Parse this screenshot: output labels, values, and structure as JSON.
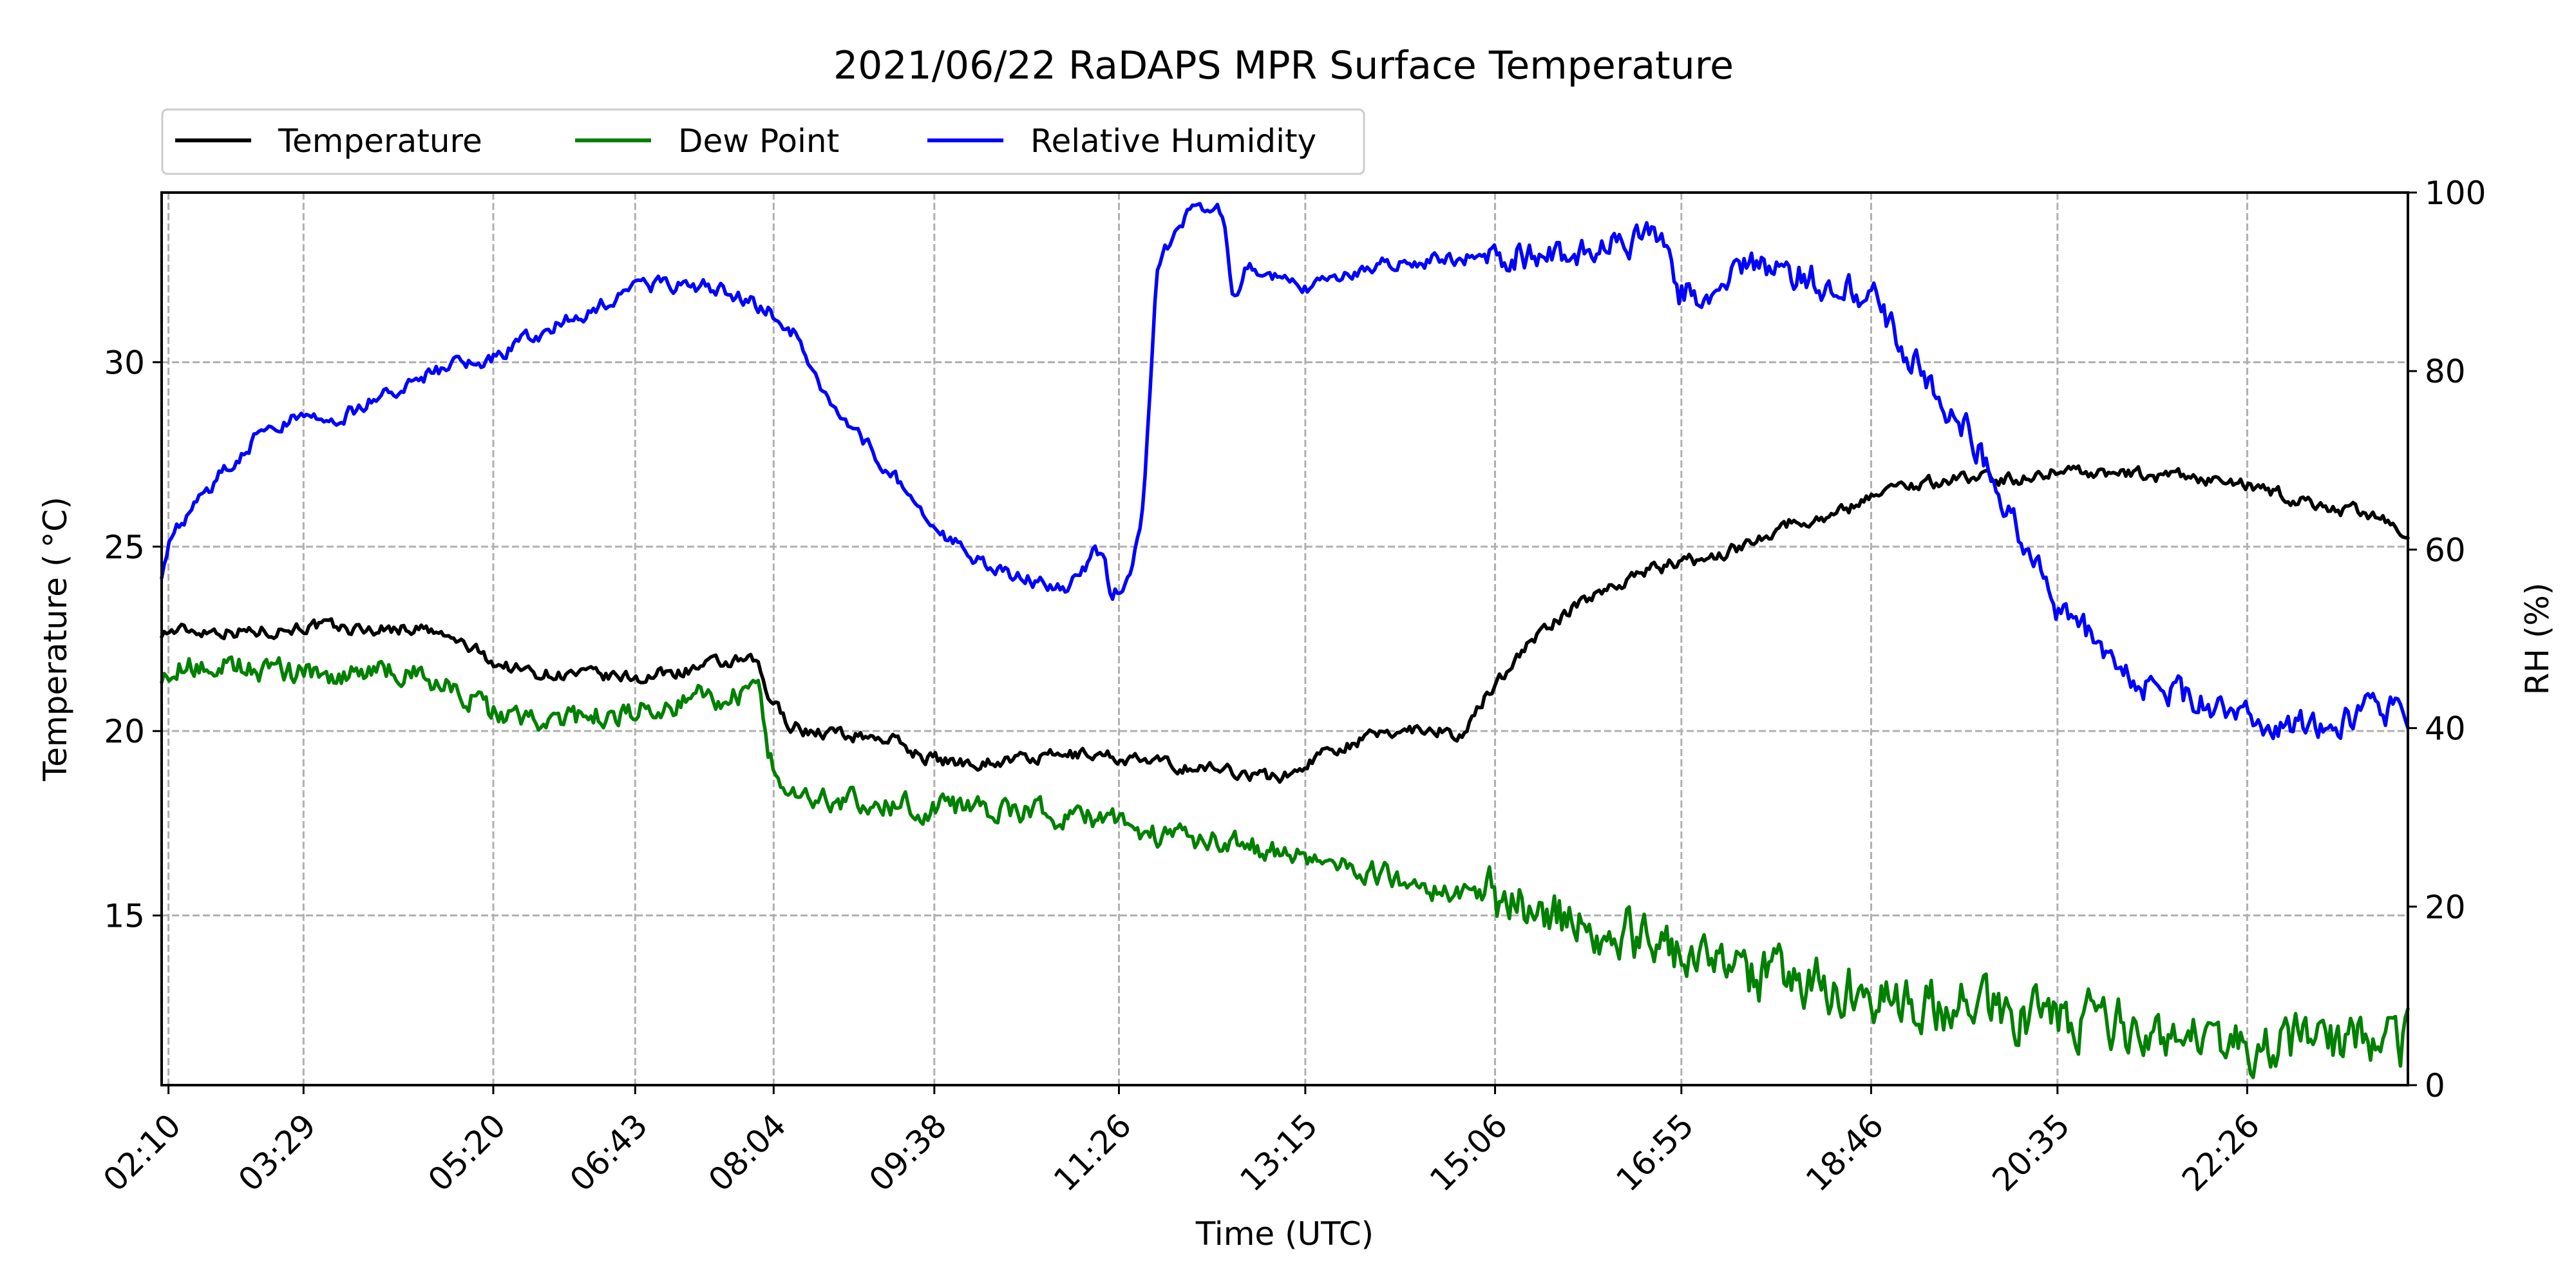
{
  "chart_data": {
    "type": "line",
    "title": "2021/06/22 RaDAPS MPR Surface Temperature",
    "xlabel": "Time (UTC)",
    "ylabel_left": "Temperature ($^\\circ$C)",
    "ylabel_right": "RH (%)",
    "x_unit": "time of day (hours, UTC)",
    "xlim": [
      2.1,
      24.0
    ],
    "ylim_left": [
      10.4,
      34.6
    ],
    "ylim_right": [
      0,
      100
    ],
    "xticks": [
      {
        "t": 2.1667,
        "label": "02:10"
      },
      {
        "t": 3.4833,
        "label": "03:29"
      },
      {
        "t": 5.3333,
        "label": "05:20"
      },
      {
        "t": 6.7167,
        "label": "06:43"
      },
      {
        "t": 8.0667,
        "label": "08:04"
      },
      {
        "t": 9.6333,
        "label": "09:38"
      },
      {
        "t": 11.4333,
        "label": "11:26"
      },
      {
        "t": 13.25,
        "label": "13:15"
      },
      {
        "t": 15.1,
        "label": "15:06"
      },
      {
        "t": 16.9167,
        "label": "16:55"
      },
      {
        "t": 18.7667,
        "label": "18:46"
      },
      {
        "t": 20.5833,
        "label": "20:35"
      },
      {
        "t": 22.4333,
        "label": "22:26"
      }
    ],
    "yticks_left": [
      15,
      20,
      25,
      30
    ],
    "yticks_right": [
      0,
      20,
      40,
      60,
      80,
      100
    ],
    "grid": true,
    "legend_position": "top-left, above plot",
    "series": [
      {
        "name": "Temperature",
        "axis": "left",
        "color": "#000000",
        "noise": 0.15,
        "points": [
          [
            2.1,
            22.7
          ],
          [
            2.6,
            22.75
          ],
          [
            3.0,
            22.7
          ],
          [
            3.5,
            22.85
          ],
          [
            4.0,
            22.75
          ],
          [
            4.6,
            22.8
          ],
          [
            4.8,
            22.6
          ],
          [
            5.0,
            22.4
          ],
          [
            5.2,
            22.1
          ],
          [
            5.4,
            21.8
          ],
          [
            5.7,
            21.6
          ],
          [
            6.0,
            21.55
          ],
          [
            6.5,
            21.45
          ],
          [
            6.8,
            21.45
          ],
          [
            7.0,
            21.55
          ],
          [
            7.4,
            21.75
          ],
          [
            7.7,
            21.85
          ],
          [
            7.9,
            21.85
          ],
          [
            8.0,
            21.0
          ],
          [
            8.2,
            20.25
          ],
          [
            8.4,
            20.0
          ],
          [
            8.8,
            19.9
          ],
          [
            9.2,
            19.8
          ],
          [
            9.5,
            19.35
          ],
          [
            9.8,
            19.15
          ],
          [
            10.3,
            19.2
          ],
          [
            10.8,
            19.3
          ],
          [
            11.2,
            19.4
          ],
          [
            11.6,
            19.2
          ],
          [
            12.0,
            19.05
          ],
          [
            12.5,
            18.95
          ],
          [
            12.9,
            18.75
          ],
          [
            13.1,
            18.8
          ],
          [
            13.3,
            19.2
          ],
          [
            13.5,
            19.55
          ],
          [
            13.8,
            19.75
          ],
          [
            14.2,
            20.05
          ],
          [
            14.5,
            20.1
          ],
          [
            14.8,
            19.85
          ],
          [
            15.0,
            20.9
          ],
          [
            15.3,
            22.0
          ],
          [
            15.6,
            22.8
          ],
          [
            16.0,
            23.6
          ],
          [
            16.5,
            24.3
          ],
          [
            16.8,
            24.5
          ],
          [
            17.2,
            24.7
          ],
          [
            17.5,
            25.0
          ],
          [
            17.9,
            25.6
          ],
          [
            18.3,
            25.8
          ],
          [
            18.6,
            26.1
          ],
          [
            18.8,
            26.5
          ],
          [
            19.2,
            26.7
          ],
          [
            19.5,
            26.8
          ],
          [
            19.8,
            26.9
          ],
          [
            20.2,
            26.8
          ],
          [
            20.6,
            27.1
          ],
          [
            21.0,
            27.0
          ],
          [
            21.5,
            26.9
          ],
          [
            22.0,
            26.85
          ],
          [
            22.5,
            26.6
          ],
          [
            22.9,
            26.3
          ],
          [
            23.3,
            26.0
          ],
          [
            23.7,
            25.9
          ],
          [
            23.9,
            25.3
          ],
          [
            24.0,
            25.1
          ]
        ]
      },
      {
        "name": "Dew Point",
        "axis": "left",
        "color": "#008000",
        "noise": 0.28,
        "points": [
          [
            2.1,
            21.6
          ],
          [
            2.4,
            21.8
          ],
          [
            2.8,
            21.75
          ],
          [
            3.2,
            21.6
          ],
          [
            3.8,
            21.55
          ],
          [
            4.6,
            21.6
          ],
          [
            4.8,
            21.3
          ],
          [
            5.1,
            21.0
          ],
          [
            5.3,
            20.5
          ],
          [
            5.5,
            20.25
          ],
          [
            6.0,
            20.3
          ],
          [
            6.5,
            20.45
          ],
          [
            7.0,
            20.7
          ],
          [
            7.4,
            20.9
          ],
          [
            7.8,
            20.95
          ],
          [
            7.93,
            20.85
          ],
          [
            8.0,
            19.5
          ],
          [
            8.1,
            18.6
          ],
          [
            8.3,
            18.3
          ],
          [
            8.8,
            18.1
          ],
          [
            9.3,
            17.95
          ],
          [
            9.8,
            17.9
          ],
          [
            10.4,
            17.8
          ],
          [
            11.0,
            17.7
          ],
          [
            11.4,
            17.65
          ],
          [
            11.6,
            17.3
          ],
          [
            12.0,
            17.1
          ],
          [
            12.6,
            16.95
          ],
          [
            13.1,
            16.55
          ],
          [
            13.6,
            16.45
          ],
          [
            14.0,
            16.1
          ],
          [
            14.6,
            15.6
          ],
          [
            15.2,
            15.3
          ],
          [
            15.8,
            15.0
          ],
          [
            16.3,
            14.6
          ],
          [
            16.8,
            13.9
          ],
          [
            17.3,
            13.4
          ],
          [
            17.8,
            13.3
          ],
          [
            18.3,
            13.1
          ],
          [
            18.8,
            12.9
          ],
          [
            19.3,
            12.7
          ],
          [
            19.8,
            12.5
          ],
          [
            20.3,
            12.3
          ],
          [
            20.8,
            12.1
          ],
          [
            21.3,
            11.9
          ],
          [
            21.8,
            11.7
          ],
          [
            22.3,
            11.6
          ],
          [
            22.8,
            11.5
          ],
          [
            23.3,
            11.45
          ],
          [
            23.7,
            11.5
          ],
          [
            24.0,
            11.6
          ]
        ]
      },
      {
        "name": "Relative Humidity",
        "axis": "right",
        "color": "#0000FF",
        "noise": 0.7,
        "points": [
          [
            2.1,
            57.5
          ],
          [
            2.2,
            62
          ],
          [
            2.5,
            66
          ],
          [
            2.8,
            70
          ],
          [
            3.0,
            72.5
          ],
          [
            3.3,
            74.5
          ],
          [
            3.6,
            74.8
          ],
          [
            3.9,
            75.3
          ],
          [
            4.2,
            76.8
          ],
          [
            4.5,
            79
          ],
          [
            4.9,
            80.5
          ],
          [
            5.3,
            81.3
          ],
          [
            5.6,
            83
          ],
          [
            6.0,
            85.5
          ],
          [
            6.4,
            87.5
          ],
          [
            6.8,
            89.5
          ],
          [
            7.2,
            89.8
          ],
          [
            7.6,
            89
          ],
          [
            8.0,
            87
          ],
          [
            8.3,
            84
          ],
          [
            8.5,
            78
          ],
          [
            8.8,
            74
          ],
          [
            9.1,
            70
          ],
          [
            9.4,
            66
          ],
          [
            9.8,
            61
          ],
          [
            10.2,
            58
          ],
          [
            10.6,
            56.5
          ],
          [
            10.9,
            55.5
          ],
          [
            11.05,
            57
          ],
          [
            11.2,
            60
          ],
          [
            11.3,
            58
          ],
          [
            11.35,
            54
          ],
          [
            11.55,
            58
          ],
          [
            11.65,
            62
          ],
          [
            11.7,
            70
          ],
          [
            11.8,
            92
          ],
          [
            12.1,
            98
          ],
          [
            12.45,
            98
          ],
          [
            12.55,
            88
          ],
          [
            12.7,
            92
          ],
          [
            13.0,
            90.5
          ],
          [
            13.2,
            89
          ],
          [
            13.5,
            90
          ],
          [
            13.8,
            91
          ],
          [
            14.2,
            92.5
          ],
          [
            14.5,
            92.5
          ],
          [
            14.8,
            92.8
          ],
          [
            15.2,
            93
          ],
          [
            15.6,
            93
          ],
          [
            15.9,
            92.5
          ],
          [
            16.3,
            94.5
          ],
          [
            16.6,
            95
          ],
          [
            16.8,
            94
          ],
          [
            16.9,
            89
          ],
          [
            17.3,
            88.5
          ],
          [
            17.6,
            92.5
          ],
          [
            18.0,
            91
          ],
          [
            18.4,
            89.5
          ],
          [
            18.6,
            89
          ],
          [
            18.8,
            88
          ],
          [
            19.0,
            84
          ],
          [
            19.3,
            79
          ],
          [
            19.6,
            75
          ],
          [
            19.8,
            72
          ],
          [
            20.0,
            66
          ],
          [
            20.3,
            59
          ],
          [
            20.6,
            53
          ],
          [
            21.0,
            49
          ],
          [
            21.3,
            45
          ],
          [
            21.6,
            44
          ],
          [
            22.0,
            43
          ],
          [
            22.4,
            42
          ],
          [
            22.8,
            40.5
          ],
          [
            23.2,
            40.5
          ],
          [
            23.6,
            41.5
          ],
          [
            24.0,
            42
          ]
        ]
      }
    ]
  }
}
